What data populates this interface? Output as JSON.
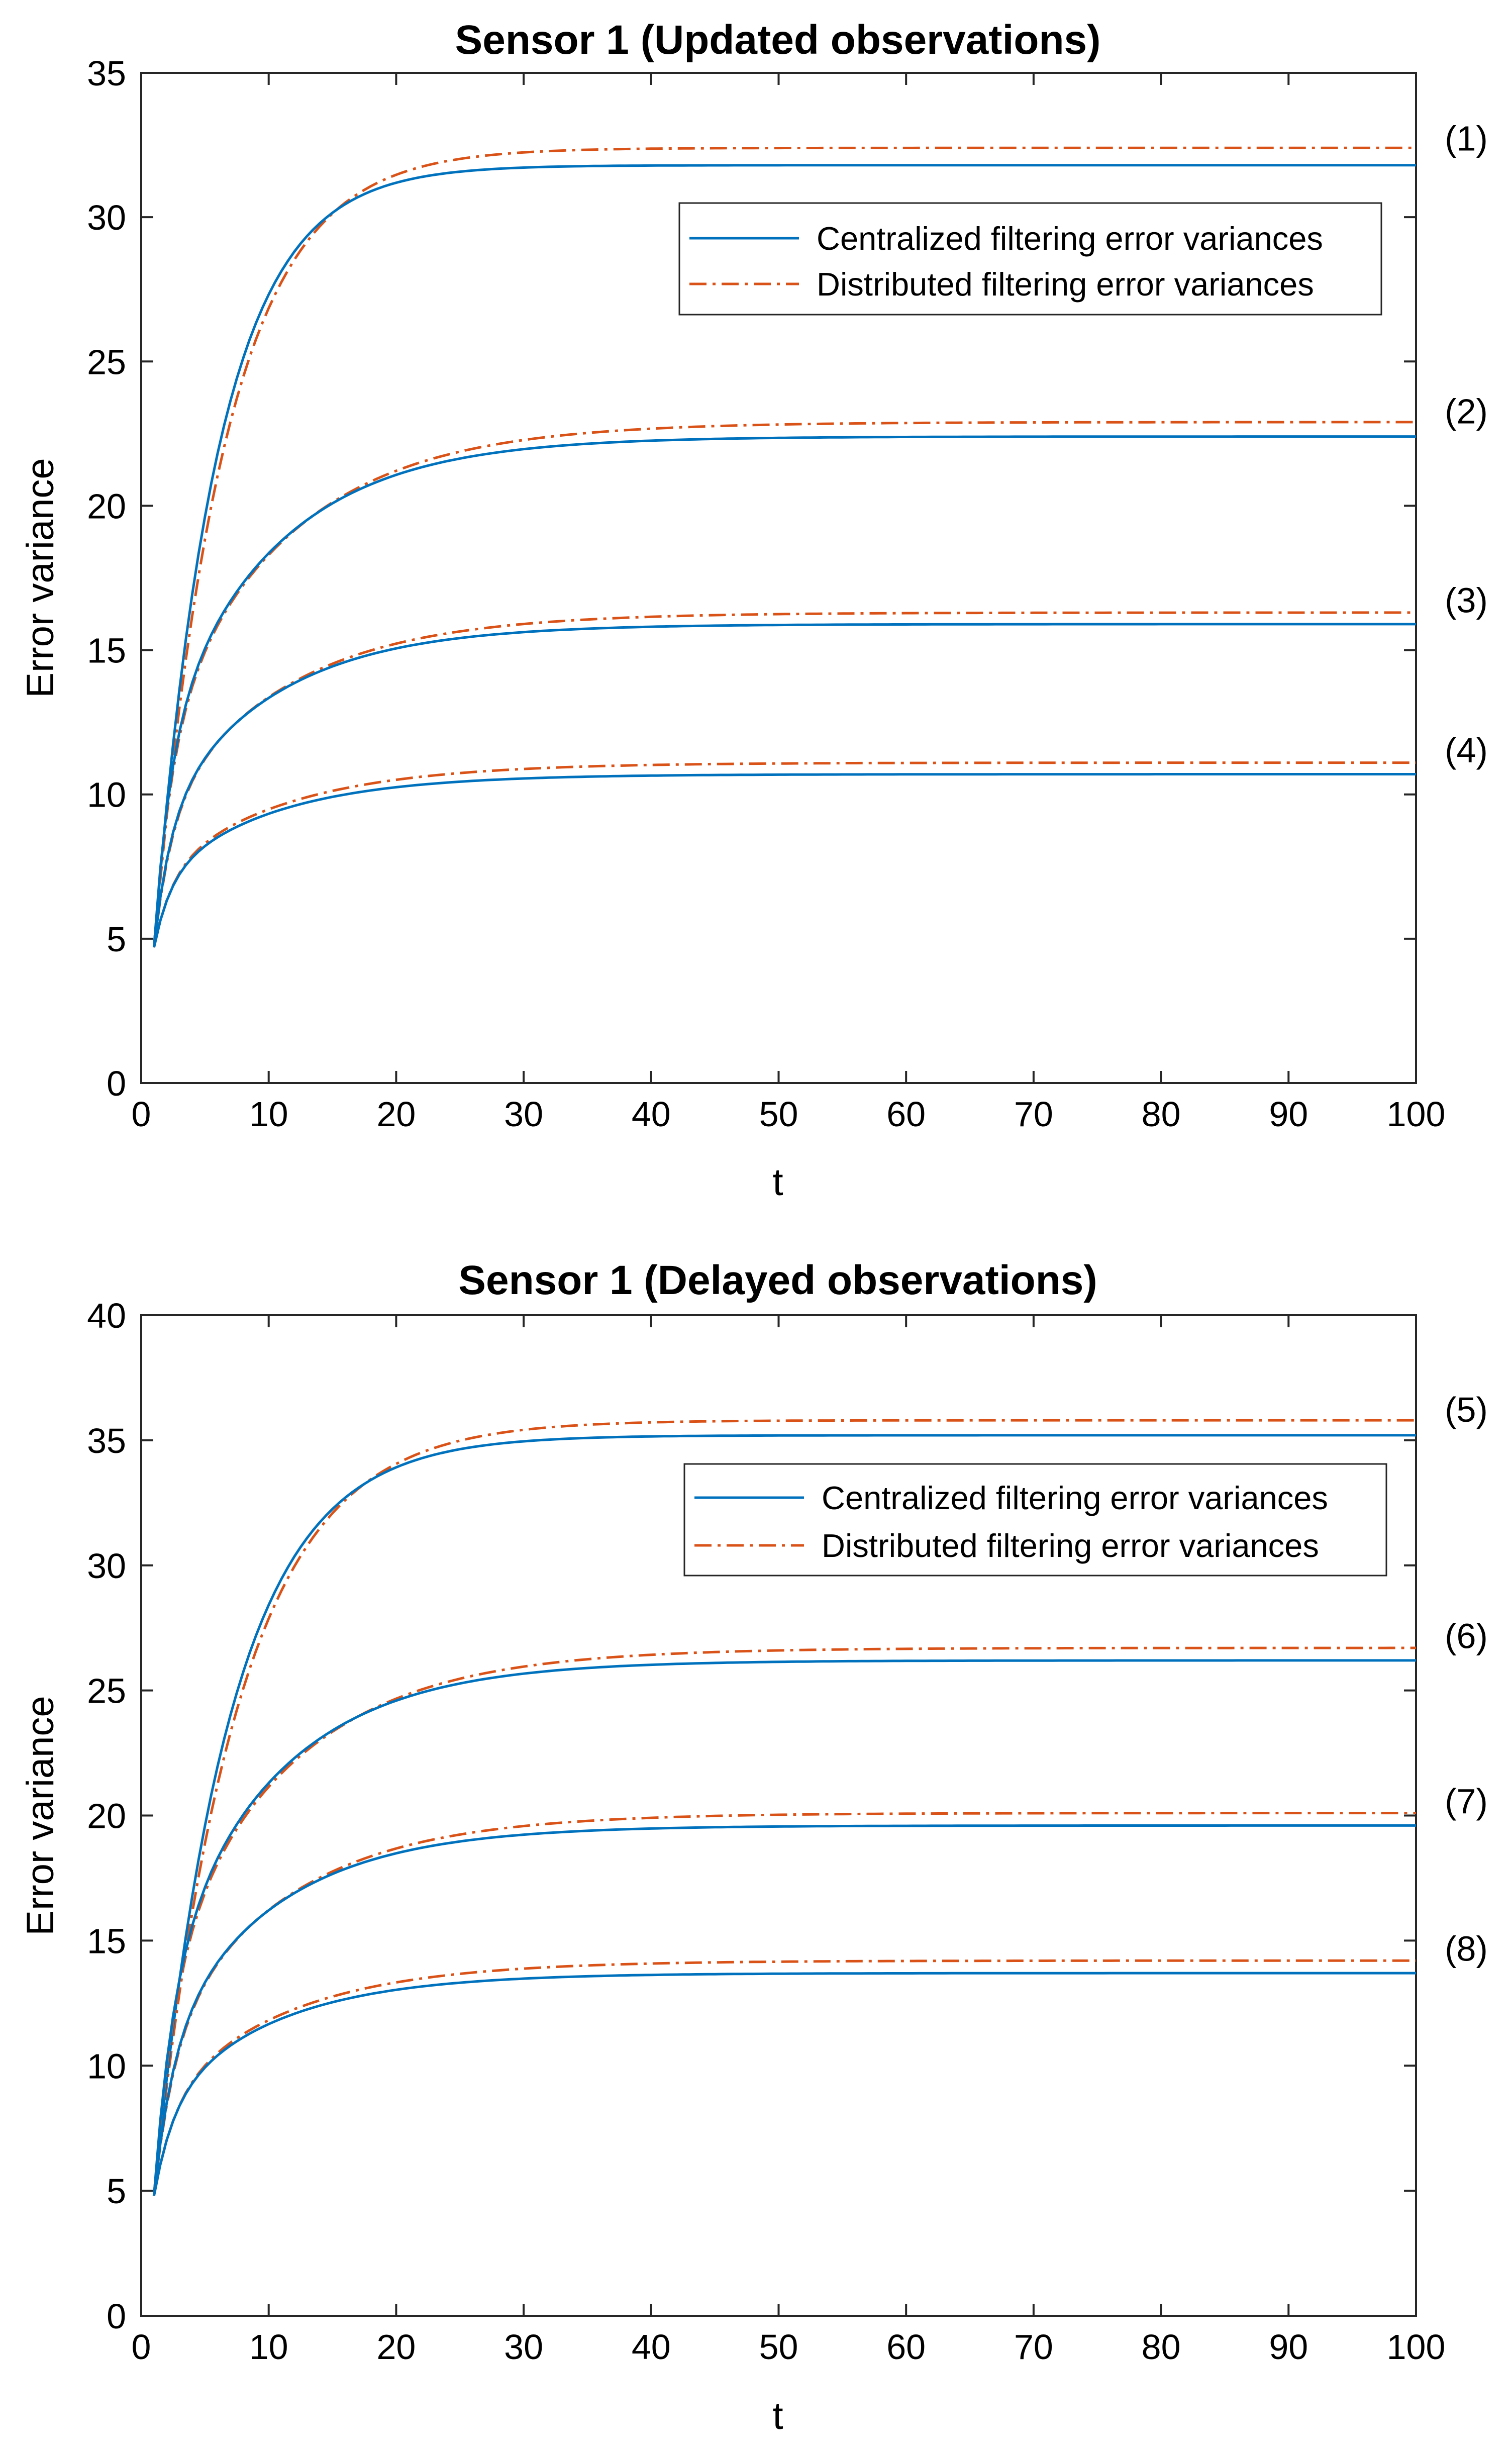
{
  "chart_data": [
    {
      "type": "line",
      "title": "Sensor 1 (Updated observations)",
      "xlabel": "t",
      "ylabel": "Error variance",
      "xlim": [
        0,
        100
      ],
      "ylim": [
        0,
        35
      ],
      "xticks": [
        0,
        10,
        20,
        30,
        40,
        50,
        60,
        70,
        80,
        90,
        100
      ],
      "yticks": [
        0,
        5,
        10,
        15,
        20,
        25,
        30,
        35
      ],
      "grid": false,
      "legend_position": "top-right",
      "legend": [
        {
          "label": "Centralized filtering error variances",
          "color": "#0072BD",
          "style": "solid"
        },
        {
          "label": "Distributed filtering error variances",
          "color": "#D95319",
          "style": "dash-dot"
        }
      ],
      "series": [
        {
          "id": "(1)",
          "centralized": {
            "start": 4.7,
            "steady": 31.8,
            "tau": 5.0
          },
          "distributed": {
            "start": 4.7,
            "steady": 32.4,
            "tau": 5.6
          }
        },
        {
          "id": "(2)",
          "centralized": {
            "start": 4.7,
            "steady": 22.4,
            "c1": 0.38,
            "tau1": 1.3,
            "tau2": 9.0
          },
          "distributed": {
            "start": 4.7,
            "steady": 22.9,
            "c1": 0.38,
            "tau1": 1.4,
            "tau2": 10.0
          }
        },
        {
          "id": "(3)",
          "centralized": {
            "start": 4.7,
            "steady": 15.9,
            "c1": 0.38,
            "tau1": 1.3,
            "tau2": 9.0
          },
          "distributed": {
            "start": 4.7,
            "steady": 16.3,
            "c1": 0.38,
            "tau1": 1.4,
            "tau2": 10.0
          }
        },
        {
          "id": "(4)",
          "centralized": {
            "start": 4.7,
            "steady": 10.7,
            "c1": 0.38,
            "tau1": 1.3,
            "tau2": 9.0
          },
          "distributed": {
            "start": 4.7,
            "steady": 11.1,
            "c1": 0.38,
            "tau1": 1.4,
            "tau2": 10.0
          }
        }
      ]
    },
    {
      "type": "line",
      "title": "Sensor 1 (Delayed observations)",
      "xlabel": "t",
      "ylabel": "Error variance",
      "xlim": [
        0,
        100
      ],
      "ylim": [
        0,
        40
      ],
      "xticks": [
        0,
        10,
        20,
        30,
        40,
        50,
        60,
        70,
        80,
        90,
        100
      ],
      "yticks": [
        0,
        5,
        10,
        15,
        20,
        25,
        30,
        35,
        40
      ],
      "grid": false,
      "legend_position": "top-right",
      "legend": [
        {
          "label": "Centralized filtering error variances",
          "color": "#0072BD",
          "style": "solid"
        },
        {
          "label": "Distributed filtering error variances",
          "color": "#D95319",
          "style": "dash-dot"
        }
      ],
      "series": [
        {
          "id": "(5)",
          "centralized": {
            "start": 4.8,
            "steady": 35.2,
            "tau": 6.0
          },
          "distributed": {
            "start": 4.8,
            "steady": 35.8,
            "tau": 6.6
          }
        },
        {
          "id": "(6)",
          "centralized": {
            "start": 4.8,
            "steady": 26.2,
            "c1": 0.38,
            "tau1": 1.5,
            "tau2": 9.0
          },
          "distributed": {
            "start": 4.8,
            "steady": 26.7,
            "c1": 0.38,
            "tau1": 1.6,
            "tau2": 10.0
          }
        },
        {
          "id": "(7)",
          "centralized": {
            "start": 4.8,
            "steady": 19.6,
            "c1": 0.38,
            "tau1": 1.5,
            "tau2": 9.0
          },
          "distributed": {
            "start": 4.8,
            "steady": 20.1,
            "c1": 0.38,
            "tau1": 1.6,
            "tau2": 10.0
          }
        },
        {
          "id": "(8)",
          "centralized": {
            "start": 4.8,
            "steady": 13.7,
            "c1": 0.38,
            "tau1": 1.5,
            "tau2": 9.0
          },
          "distributed": {
            "start": 4.8,
            "steady": 14.2,
            "c1": 0.38,
            "tau1": 1.6,
            "tau2": 10.0
          }
        }
      ]
    }
  ]
}
